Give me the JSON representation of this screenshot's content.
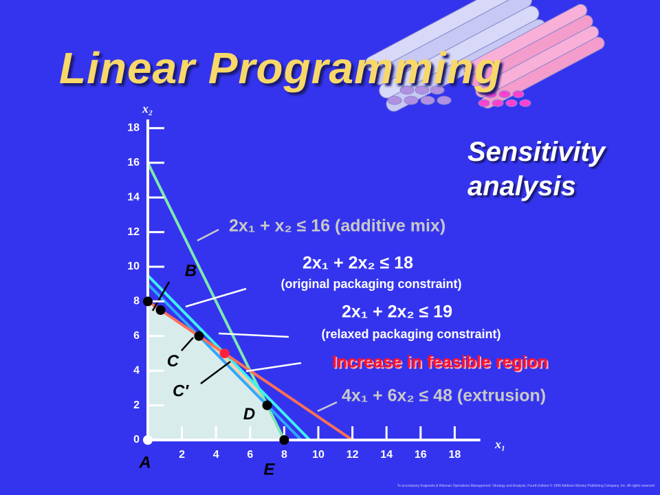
{
  "title": "Linear Programming",
  "subtitle": "Sensitivity analysis",
  "footnote": "To accompany Krajewski & Ritzman Operations Management: Strategy and Analysis, Fourth Edition © 1996 Addison-Wesley Publishing Company, Inc. All rights reserved",
  "chart_data": {
    "type": "line",
    "x_label": "x₁",
    "y_label": "x₂",
    "xlim": [
      0,
      19.5
    ],
    "ylim": [
      0,
      18.5
    ],
    "xticks": [
      2,
      4,
      6,
      8,
      10,
      12,
      14,
      16,
      18
    ],
    "yticks": [
      0,
      2,
      4,
      6,
      8,
      10,
      12,
      14,
      16,
      18
    ],
    "series": [
      {
        "name": "2x₁ + x₂ ≤ 16 (additive mix)",
        "color": "#7de8b0",
        "x": [
          0,
          8
        ],
        "y": [
          16,
          0
        ]
      },
      {
        "name": "2x₁ + 2x₂ ≤ 18",
        "note": "(original packaging constraint)",
        "color": "#2fa8ff",
        "x": [
          0,
          9
        ],
        "y": [
          9,
          0
        ]
      },
      {
        "name": "2x₁ + 2x₂ ≤ 19",
        "note": "(relaxed packaging constraint)",
        "color": "#3ff0f0",
        "x": [
          0,
          9.5
        ],
        "y": [
          9.5,
          0
        ]
      },
      {
        "name": "4x₁ + 6x₂ ≤ 48 (extrusion)",
        "color": "#ff7055",
        "x": [
          0,
          12
        ],
        "y": [
          8,
          0
        ]
      }
    ],
    "feasible_region": {
      "color": "#d8ecec",
      "x": [
        0,
        0,
        4.5,
        6.5,
        8
      ],
      "y": [
        0,
        8,
        5,
        3,
        0
      ]
    },
    "increase_region": {
      "label": "Increase in feasible region",
      "color": "#f2d2b0",
      "x": [
        3,
        4.5,
        6.5,
        7
      ],
      "y": [
        6,
        5,
        3,
        2
      ]
    },
    "points": {
      "labels": [
        "A",
        null,
        "B",
        "C",
        "C′",
        "D",
        "E"
      ],
      "colors": [
        "#ffffff",
        "#000000",
        "#000000",
        "#000000",
        "#ff2040",
        "#000000",
        "#000000"
      ],
      "x": [
        0,
        0,
        0.75,
        3,
        4.5,
        7,
        8
      ],
      "y": [
        0,
        8,
        7.5,
        6,
        5,
        2,
        0
      ]
    }
  }
}
